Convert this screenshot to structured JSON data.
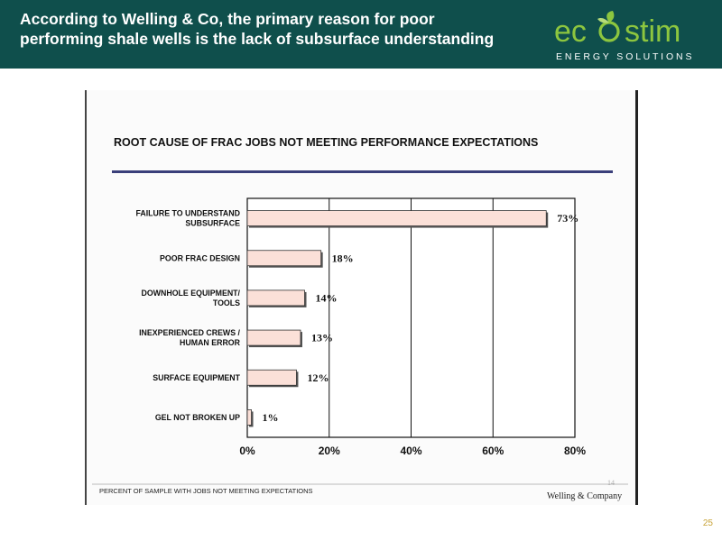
{
  "header": {
    "title_line1": "According to Welling & Co, the primary reason for poor",
    "title_line2": "performing shale wells is the lack of subsurface understanding",
    "accent_color": "#0f4f4c"
  },
  "logo": {
    "wordmark_left": "ec",
    "wordmark_right": "stim",
    "tagline": "E N E R G Y   S O L U T I O N S",
    "icon": "leaf-sprout-icon",
    "color_primary": "#8dc63f"
  },
  "slide": {
    "page_number": "25"
  },
  "chart_data": {
    "type": "bar",
    "orientation": "horizontal",
    "title": "ROOT CAUSE OF FRAC JOBS NOT MEETING PERFORMANCE EXPECTATIONS",
    "categories": [
      [
        "FAILURE TO UNDERSTAND",
        "SUBSURFACE"
      ],
      [
        "POOR FRAC DESIGN"
      ],
      [
        "DOWNHOLE EQUIPMENT/",
        "TOOLS"
      ],
      [
        "INEXPERIENCED CREWS /",
        "HUMAN ERROR"
      ],
      [
        "SURFACE EQUIPMENT"
      ],
      [
        "GEL NOT BROKEN UP"
      ]
    ],
    "values": [
      73,
      18,
      14,
      13,
      12,
      1
    ],
    "value_labels": [
      "73%",
      "18%",
      "14%",
      "13%",
      "12%",
      "1%"
    ],
    "xlim": [
      0,
      80
    ],
    "x_ticks": [
      "0%",
      "20%",
      "40%",
      "60%",
      "80%"
    ],
    "x_tick_values": [
      0,
      20,
      40,
      60,
      80
    ],
    "grid": "vertical",
    "bar_color": "#fbe0d8",
    "xlabel": "PERCENT OF SAMPLE WITH JOBS NOT MEETING EXPECTATIONS",
    "page_ref": "14",
    "source": "Welling & Company"
  }
}
